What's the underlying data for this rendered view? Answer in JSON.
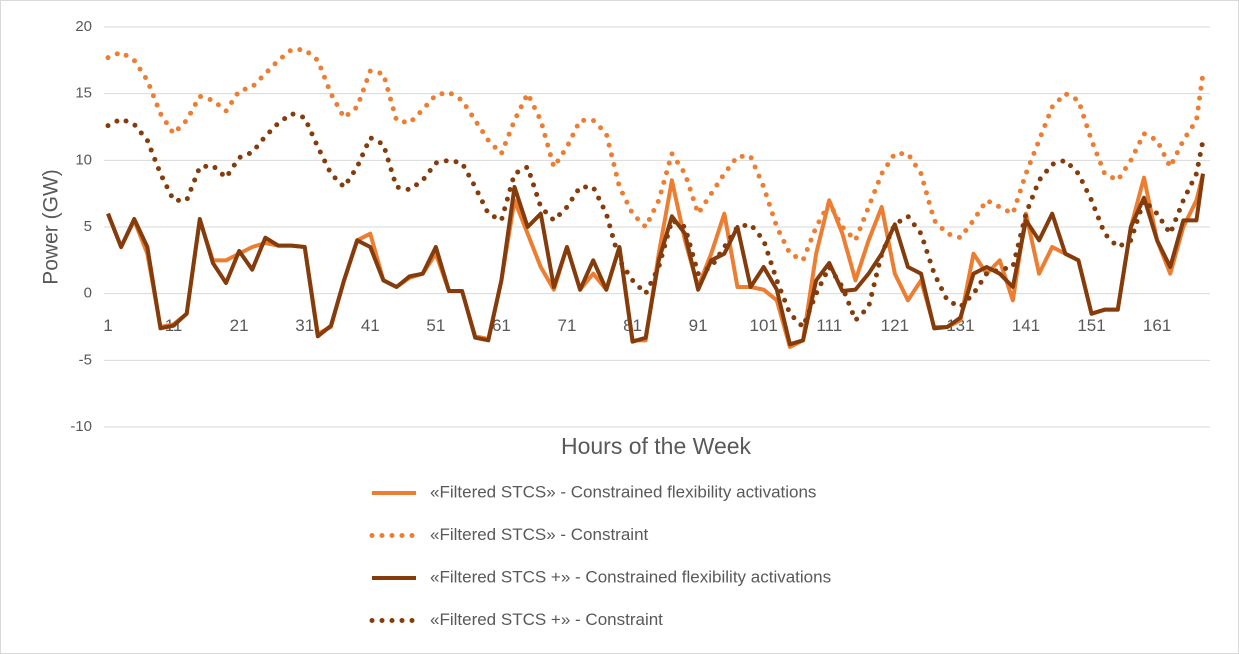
{
  "chart_data": {
    "type": "line",
    "x_label": "Hours of the Week",
    "y_label": "Power (GW)",
    "xlim": [
      1,
      168
    ],
    "xticks": [
      1,
      11,
      21,
      31,
      41,
      51,
      61,
      71,
      81,
      91,
      101,
      111,
      121,
      131,
      141,
      151,
      161
    ],
    "ylim": [
      -10,
      20
    ],
    "yticks": [
      -10,
      -5,
      0,
      5,
      10,
      15,
      20
    ],
    "grid": true,
    "legend": "bottom",
    "x": [
      1,
      3,
      5,
      7,
      9,
      11,
      13,
      15,
      17,
      19,
      21,
      23,
      25,
      27,
      29,
      31,
      33,
      35,
      37,
      39,
      41,
      43,
      45,
      47,
      49,
      51,
      53,
      55,
      57,
      59,
      61,
      63,
      65,
      67,
      69,
      71,
      73,
      75,
      77,
      79,
      81,
      83,
      85,
      87,
      89,
      91,
      93,
      95,
      97,
      99,
      101,
      103,
      105,
      107,
      109,
      111,
      113,
      115,
      117,
      119,
      121,
      123,
      125,
      127,
      129,
      131,
      133,
      135,
      137,
      139,
      141,
      143,
      145,
      147,
      149,
      151,
      153,
      155,
      157,
      159,
      161,
      163,
      165,
      167,
      168
    ],
    "series": [
      {
        "name": "«Filtered STCS» - Constrained flexibility activations",
        "color": "#ed7d31",
        "style": "solid",
        "values": [
          6,
          3.5,
          5.5,
          3,
          -2.5,
          -2.3,
          -1.5,
          5.5,
          2.5,
          2.5,
          3,
          3.5,
          3.8,
          3.6,
          3.6,
          3.5,
          -3,
          -2.5,
          1,
          4,
          4.5,
          1,
          0.5,
          1.2,
          1.5,
          3,
          0.2,
          0.2,
          -3.2,
          -3.4,
          1,
          7,
          4.5,
          2,
          0.3,
          3.5,
          0.3,
          1.5,
          0.3,
          3.5,
          -3.5,
          -3.5,
          3,
          8.5,
          4,
          0.5,
          3,
          6,
          0.5,
          0.5,
          0.3,
          -0.5,
          -4,
          -3.5,
          3,
          7,
          4.5,
          1,
          4,
          6.5,
          1.5,
          -0.5,
          1,
          -2.5,
          -2.5,
          -2,
          3,
          1.5,
          2.5,
          -0.5,
          6,
          1.5,
          3.5,
          3,
          2.5,
          -1.5,
          -1.2,
          -1.2,
          5,
          8.7,
          4,
          1.5,
          5,
          7,
          9
        ]
      },
      {
        "name": "«Filtered STCS» - Constraint",
        "color": "#ed7d31",
        "style": "dotted",
        "values": [
          17.7,
          18.1,
          17.5,
          16,
          13.5,
          12,
          13,
          14.8,
          14.5,
          13.7,
          15.2,
          15.5,
          16.5,
          17.5,
          18.3,
          18.3,
          17.5,
          15,
          13.2,
          14,
          16.7,
          16.5,
          13,
          12.8,
          13.8,
          14.9,
          15.1,
          14.5,
          13,
          11.5,
          10.5,
          13,
          15,
          13,
          9.5,
          11,
          13,
          13,
          12,
          8,
          6,
          5,
          7,
          10.5,
          9,
          6,
          7.5,
          9,
          10.3,
          10.3,
          8,
          5,
          3,
          2.5,
          5,
          6.8,
          5,
          4,
          6.5,
          9,
          10.5,
          10.5,
          9,
          5.5,
          4.5,
          4.2,
          5.5,
          7,
          6.5,
          6,
          9,
          11.5,
          14,
          15,
          14.5,
          11.5,
          9,
          8.5,
          10,
          12,
          11.5,
          9.5,
          11.5,
          13,
          16.5
        ]
      },
      {
        "name": "«Filtered STCS +» - Constrained flexibility activations",
        "color": "#843c0c",
        "style": "solid",
        "values": [
          6,
          3.5,
          5.6,
          3.5,
          -2.6,
          -2.4,
          -1.5,
          5.6,
          2.3,
          0.8,
          3.2,
          1.8,
          4.2,
          3.6,
          3.6,
          3.5,
          -3.2,
          -2.4,
          1,
          4,
          3.5,
          1,
          0.5,
          1.3,
          1.5,
          3.5,
          0.2,
          0.2,
          -3.3,
          -3.5,
          1,
          8,
          5,
          6,
          0.5,
          3.5,
          0.3,
          2.5,
          0.3,
          3.5,
          -3.6,
          -3.3,
          2.5,
          5.8,
          4.5,
          0.3,
          2.5,
          3,
          5,
          0.5,
          2,
          0.3,
          -3.8,
          -3.5,
          1,
          2.3,
          0.2,
          0.3,
          1.5,
          3,
          5.2,
          2,
          1.5,
          -2.6,
          -2.5,
          -1.8,
          1.5,
          2,
          1.5,
          0.5,
          5.5,
          4,
          6,
          3,
          2.5,
          -1.5,
          -1.2,
          -1.2,
          5,
          7.2,
          4,
          2,
          5.5,
          5.5,
          9
        ]
      },
      {
        "name": "«Filtered STCS +» - Constraint",
        "color": "#843c0c",
        "style": "dotted",
        "values": [
          12.6,
          13.1,
          12.7,
          11.5,
          9,
          7,
          7,
          9.5,
          9.6,
          8.7,
          10.2,
          10.6,
          11.8,
          12.8,
          13.5,
          13.2,
          11,
          9,
          8,
          9.5,
          11.7,
          11.2,
          8,
          7.8,
          8.5,
          9.8,
          10,
          9.8,
          8,
          6,
          5.5,
          9,
          9.5,
          6.5,
          5.5,
          6.5,
          8,
          8,
          6,
          2.5,
          1,
          0,
          2,
          5.5,
          5,
          1.5,
          2,
          3.5,
          5,
          5.2,
          4,
          1,
          -1.5,
          -2.5,
          0,
          2,
          0.5,
          -2,
          -1,
          3,
          5.2,
          5.8,
          4.5,
          1.5,
          -0.5,
          -1,
          0,
          1.5,
          1.8,
          2,
          6,
          8.5,
          9.7,
          10,
          9,
          7,
          4.5,
          3.5,
          4,
          7,
          6,
          4.5,
          7,
          9,
          11.5
        ]
      }
    ]
  }
}
